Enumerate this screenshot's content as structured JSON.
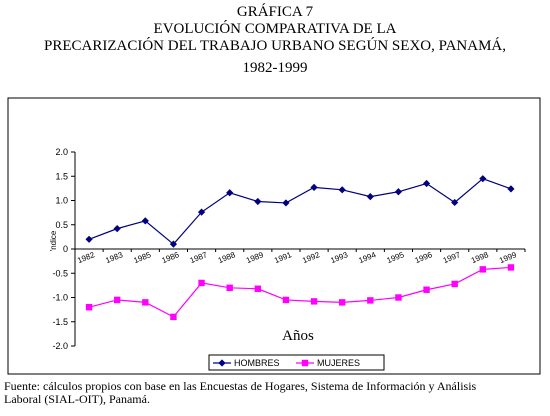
{
  "chart_data": {
    "type": "line",
    "title_lines": [
      "GRÁFICA 7",
      "EVOLUCIÓN COMPARATIVA DE LA",
      "PRECARIZACIÓN DEL TRABAJO URBANO SEGÚN SEXO, PANAMÁ,",
      "1982-1999"
    ],
    "xlabel": "Años",
    "ylabel": "'ndice",
    "x": [
      "1982",
      "1983",
      "1985",
      "1986",
      "1987",
      "1988",
      "1989",
      "1991",
      "1992",
      "1993",
      "1994",
      "1995",
      "1996",
      "1997",
      "1998",
      "1999"
    ],
    "ylim": [
      -2.0,
      2.0
    ],
    "yticks": [
      "2.0",
      "1.5",
      "1.0",
      "0.5",
      "0",
      "-0.5",
      "-1.0",
      "-1.5",
      "-2.0"
    ],
    "series": [
      {
        "name": "HOMBRES",
        "color": "#000080",
        "marker": "diamond",
        "values": [
          0.2,
          0.42,
          0.58,
          0.1,
          0.76,
          1.16,
          0.98,
          0.95,
          1.27,
          1.22,
          1.08,
          1.18,
          1.35,
          0.96,
          1.45,
          1.24
        ]
      },
      {
        "name": "MUJERES",
        "color": "#ff00ff",
        "marker": "square",
        "values": [
          -1.2,
          -1.05,
          -1.1,
          -1.4,
          -0.7,
          -0.8,
          -0.82,
          -1.05,
          -1.08,
          -1.1,
          -1.06,
          -1.0,
          -0.84,
          -0.72,
          -0.42,
          -0.38
        ]
      }
    ],
    "grid": false,
    "legend": "bottom"
  },
  "footer": {
    "line1": "Fuente: cálculos propios con base en las Encuestas de Hogares, Sistema de Información y Análisis",
    "line2": "Laboral (SIAL-OIT), Panamá."
  }
}
